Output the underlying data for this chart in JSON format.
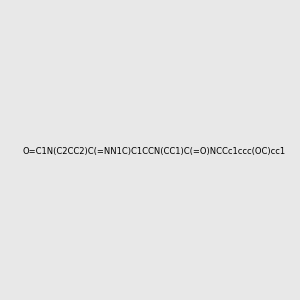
{
  "smiles": "O=C1N(C2CC2)C(=NN1C)C1CCN(CC1)C(=O)NCCc1ccc(OC)cc1",
  "image_size": 300,
  "background_color": "#e8e8e8",
  "title": ""
}
